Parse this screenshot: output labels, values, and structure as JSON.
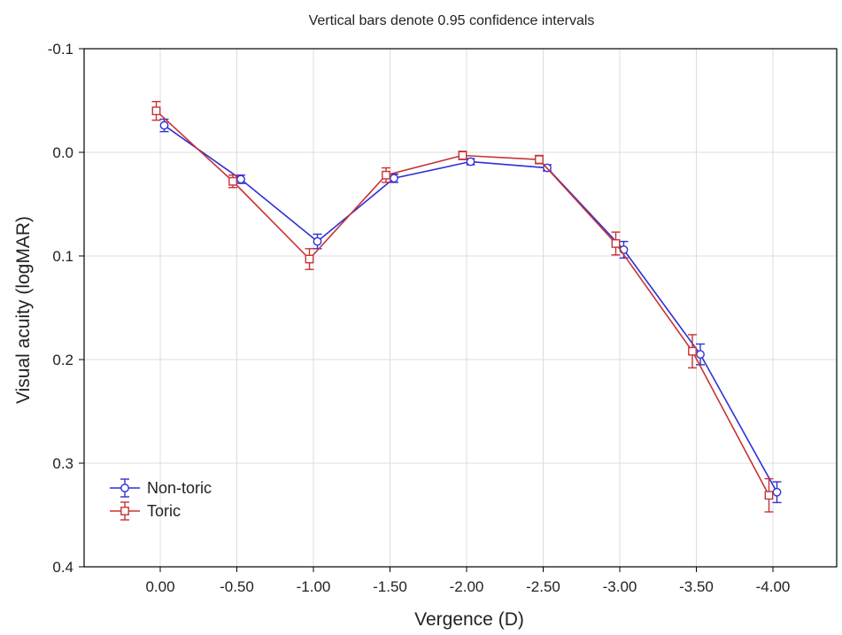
{
  "chart_data": {
    "type": "line",
    "title": "Vertical bars denote 0.95 confidence intervals",
    "xlabel": "Vergence (D)",
    "ylabel": "Visual acuity (logMAR)",
    "ylim": [
      -0.1,
      0.4
    ],
    "y_inverted": true,
    "yticks": [
      -0.1,
      0.0,
      0.1,
      0.2,
      0.3,
      0.4
    ],
    "ytick_labels": [
      "-0.1",
      "0.0",
      "0.1",
      "0.2",
      "0.3",
      "0.4"
    ],
    "categories": [
      "0.00",
      "-0.50",
      "-1.00",
      "-1.50",
      "-2.00",
      "-2.50",
      "-3.00",
      "-3.50",
      "-4.00"
    ],
    "grid": true,
    "legend_position": "bottom-left",
    "series": [
      {
        "name": "Non-toric",
        "color": "#2f2fd6",
        "marker": "circle",
        "values": [
          -0.026,
          0.026,
          0.086,
          0.025,
          0.009,
          0.015,
          0.094,
          0.195,
          0.328
        ],
        "ci_low": [
          -0.032,
          0.022,
          0.079,
          0.021,
          0.006,
          0.012,
          0.086,
          0.185,
          0.318
        ],
        "ci_high": [
          -0.02,
          0.03,
          0.093,
          0.029,
          0.012,
          0.018,
          0.102,
          0.205,
          0.338
        ]
      },
      {
        "name": "Toric",
        "color": "#c83232",
        "marker": "square",
        "values": [
          -0.04,
          0.028,
          0.103,
          0.022,
          0.003,
          0.007,
          0.088,
          0.192,
          0.331
        ],
        "ci_low": [
          -0.049,
          0.022,
          0.093,
          0.015,
          -0.001,
          0.003,
          0.077,
          0.176,
          0.315
        ],
        "ci_high": [
          -0.031,
          0.034,
          0.113,
          0.029,
          0.007,
          0.011,
          0.099,
          0.208,
          0.347
        ]
      }
    ]
  }
}
